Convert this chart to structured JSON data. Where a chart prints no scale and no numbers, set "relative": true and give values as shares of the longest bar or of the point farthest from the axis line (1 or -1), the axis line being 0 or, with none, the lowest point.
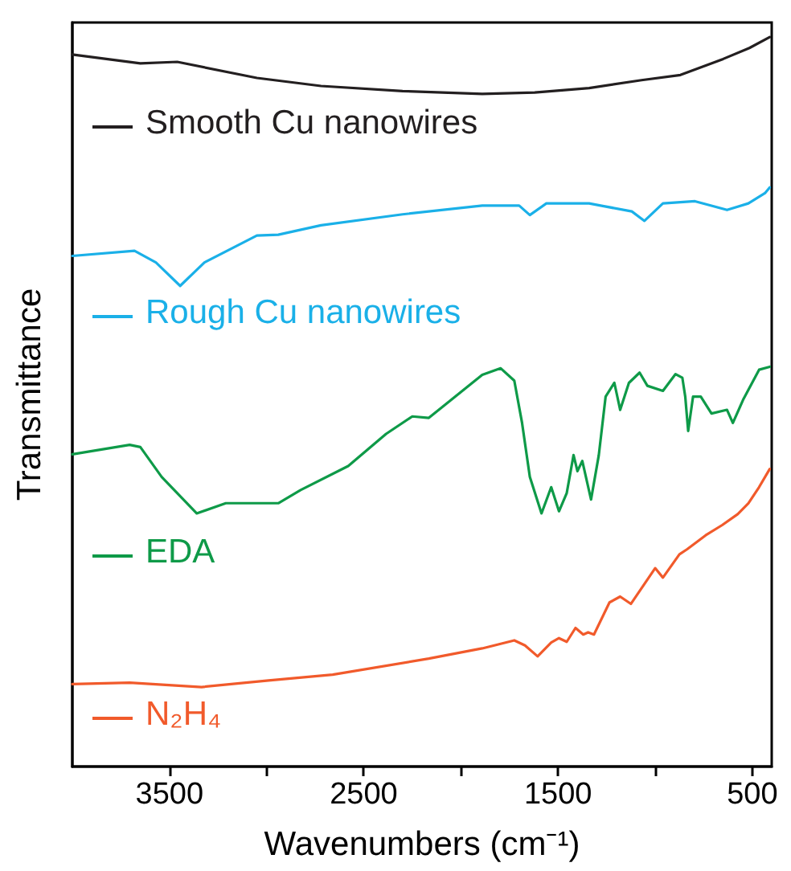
{
  "chart_data": {
    "type": "line",
    "relative": true,
    "xlabel": "Wavenumbers (cm⁻¹)",
    "ylabel": "Transmittance",
    "xlim": [
      4000,
      400
    ],
    "xticks": [
      3500,
      {
        "value": 3000,
        "label": null
      },
      2500,
      {
        "value": 2000,
        "label": null
      },
      1500,
      {
        "value": 1000,
        "label": null
      },
      500
    ],
    "legend": "left",
    "marker": "none",
    "line_style": "solid",
    "grid": false,
    "series": [
      {
        "name": "Smooth Cu nanowires",
        "color": "#231f20",
        "x": [
          4000,
          3650,
          3460,
          3050,
          2720,
          2300,
          1890,
          1620,
          1340,
          1070,
          870,
          650,
          515,
          410
        ],
        "values": [
          0.976,
          0.964,
          0.966,
          0.944,
          0.933,
          0.926,
          0.922,
          0.924,
          0.93,
          0.941,
          0.948,
          0.97,
          0.985,
          1.0
        ]
      },
      {
        "name": "Rough Cu nanowires",
        "color": "#1ab0e8",
        "x": [
          4000,
          3680,
          3570,
          3445,
          3320,
          3050,
          2940,
          2720,
          2300,
          1890,
          1700,
          1645,
          1560,
          1340,
          1120,
          1055,
          960,
          795,
          630,
          520,
          435,
          410
        ],
        "values": [
          0.7,
          0.707,
          0.691,
          0.659,
          0.691,
          0.728,
          0.729,
          0.742,
          0.757,
          0.769,
          0.769,
          0.756,
          0.772,
          0.772,
          0.761,
          0.748,
          0.772,
          0.775,
          0.763,
          0.772,
          0.786,
          0.794
        ]
      },
      {
        "name": "EDA",
        "color": "#0e9a48",
        "x": [
          4000,
          3705,
          3650,
          3540,
          3360,
          3210,
          2940,
          2825,
          2580,
          2385,
          2250,
          2165,
          2030,
          1890,
          1795,
          1725,
          1685,
          1645,
          1585,
          1535,
          1495,
          1455,
          1420,
          1400,
          1375,
          1330,
          1290,
          1255,
          1210,
          1180,
          1135,
          1080,
          1040,
          960,
          895,
          860,
          845,
          830,
          805,
          765,
          710,
          630,
          600,
          545,
          465,
          410
        ],
        "values": [
          0.428,
          0.441,
          0.438,
          0.397,
          0.347,
          0.361,
          0.361,
          0.379,
          0.412,
          0.456,
          0.48,
          0.478,
          0.507,
          0.537,
          0.546,
          0.529,
          0.471,
          0.397,
          0.347,
          0.383,
          0.35,
          0.375,
          0.427,
          0.405,
          0.419,
          0.366,
          0.427,
          0.507,
          0.526,
          0.489,
          0.526,
          0.54,
          0.522,
          0.515,
          0.538,
          0.533,
          0.507,
          0.46,
          0.507,
          0.507,
          0.484,
          0.489,
          0.471,
          0.504,
          0.544,
          0.548
        ]
      },
      {
        "name": "N₂H₄",
        "color": "#f15a2b",
        "x": [
          4000,
          3705,
          3335,
          2990,
          2660,
          2165,
          1890,
          1725,
          1670,
          1605,
          1535,
          1495,
          1455,
          1410,
          1370,
          1345,
          1315,
          1235,
          1180,
          1125,
          1000,
          960,
          875,
          835,
          740,
          655,
          575,
          520,
          465,
          410
        ],
        "values": [
          0.113,
          0.115,
          0.109,
          0.118,
          0.126,
          0.148,
          0.162,
          0.173,
          0.166,
          0.151,
          0.17,
          0.176,
          0.171,
          0.19,
          0.181,
          0.184,
          0.181,
          0.225,
          0.233,
          0.223,
          0.272,
          0.259,
          0.291,
          0.298,
          0.317,
          0.331,
          0.346,
          0.361,
          0.383,
          0.408
        ]
      }
    ]
  }
}
